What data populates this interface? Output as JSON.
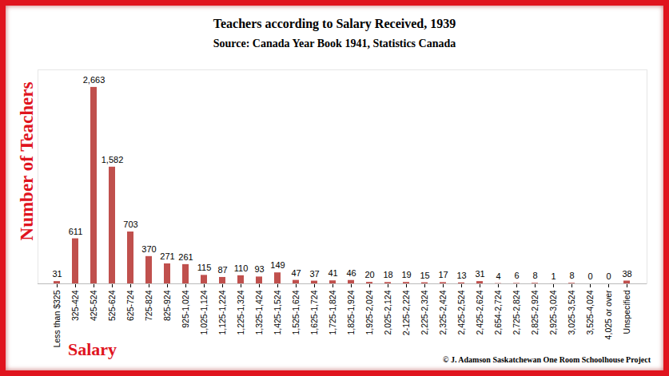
{
  "chart_data": {
    "type": "bar",
    "title": "Teachers according to Salary Received, 1939",
    "subtitle": "Source: Canada Year Book 1941, Statistics Canada",
    "xlabel": "Salary",
    "ylabel": "Number of Teachers",
    "annotations": [
      "© J. Adamson Saskatchewan One Room Schoolhouse Project"
    ],
    "categories": [
      "Less than $325",
      "325-424",
      "425-524",
      "525-624",
      "625-724",
      "725-824",
      "825-924",
      "925-1,024",
      "1,025-1,124",
      "1,125-1,224",
      "1,225-1,324",
      "1,325-1,424",
      "1,425-1,524",
      "1,525-1,624",
      "1,625-1,724",
      "1,725-1,824",
      "1,825-1,924",
      "1,925-2,024",
      "2,025-2,124",
      "2-125-2,224",
      "2,225-2,324",
      "2,325-2,424",
      "2,425-2,524",
      "2,425-2,624",
      "2,654-2,724",
      "2,725-2,824",
      "2,825-2,924",
      "2,925-3,024",
      "3,025-3,524",
      "3,525-4,024",
      "4,025 or over",
      "Unspecified"
    ],
    "values": [
      31,
      611,
      2663,
      1582,
      703,
      370,
      271,
      261,
      115,
      87,
      110,
      93,
      149,
      47,
      37,
      41,
      46,
      20,
      18,
      19,
      15,
      17,
      13,
      31,
      4,
      6,
      8,
      1,
      8,
      0,
      0,
      38
    ],
    "value_labels": [
      "31",
      "611",
      "2,663",
      "1,582",
      "703",
      "370",
      "271",
      "261",
      "115",
      "87",
      "110",
      "93",
      "149",
      "47",
      "37",
      "41",
      "46",
      "20",
      "18",
      "19",
      "15",
      "17",
      "13",
      "31",
      "4",
      "6",
      "8",
      "1",
      "8",
      "0",
      "0",
      "38"
    ],
    "color": "#c0504d",
    "ylim": [
      0,
      2900
    ],
    "grid": false,
    "data_labels": true,
    "tick_labels": "x"
  }
}
